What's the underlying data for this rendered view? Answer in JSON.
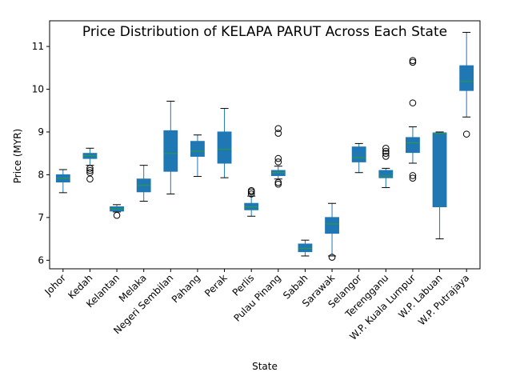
{
  "chart_data": {
    "type": "box",
    "title": "Price Distribution of KELAPA PARUT Across Each State",
    "xlabel": "State",
    "ylabel": "Price (MYR)",
    "ylim": [
      5.8,
      11.6
    ],
    "yticks": [
      "6",
      "7",
      "8",
      "9",
      "10",
      "11"
    ],
    "grid": false,
    "colors": {
      "box": "#1f77b4",
      "median": "#2ca02c",
      "whisker": "#1f77b4",
      "flier": "#000000"
    },
    "categories": [
      "Johor",
      "Kedah",
      "Kelantan",
      "Melaka",
      "Negeri Sembilan",
      "Pahang",
      "Perak",
      "Perlis",
      "Pulau Pinang",
      "Sabah",
      "Sarawak",
      "Selangor",
      "Terengganu",
      "W.P. Kuala Lumpur",
      "W.P. Labuan",
      "W.P. Putrajaya"
    ],
    "boxes": [
      {
        "whislo": 7.58,
        "q1": 7.83,
        "med": 7.92,
        "q3": 8.0,
        "whishi": 8.12,
        "fliers": []
      },
      {
        "whislo": 8.22,
        "q1": 8.38,
        "med": 8.45,
        "q3": 8.5,
        "whishi": 8.62,
        "fliers": [
          8.15,
          8.1,
          8.05,
          7.9
        ]
      },
      {
        "whislo": 7.13,
        "q1": 7.15,
        "med": 7.2,
        "q3": 7.25,
        "whishi": 7.3,
        "fliers": [
          7.05
        ]
      },
      {
        "whislo": 7.38,
        "q1": 7.6,
        "med": 7.75,
        "q3": 7.9,
        "whishi": 8.22,
        "fliers": []
      },
      {
        "whislo": 7.55,
        "q1": 8.08,
        "med": 8.5,
        "q3": 9.03,
        "whishi": 9.72,
        "fliers": []
      },
      {
        "whislo": 7.96,
        "q1": 8.43,
        "med": 8.55,
        "q3": 8.78,
        "whishi": 8.93,
        "fliers": []
      },
      {
        "whislo": 7.93,
        "q1": 8.27,
        "med": 8.6,
        "q3": 9.0,
        "whishi": 9.55,
        "fliers": []
      },
      {
        "whislo": 7.03,
        "q1": 7.18,
        "med": 7.25,
        "q3": 7.33,
        "whishi": 7.5,
        "fliers": [
          7.55,
          7.6,
          7.63
        ]
      },
      {
        "whislo": 7.9,
        "q1": 7.98,
        "med": 8.05,
        "q3": 8.1,
        "whishi": 8.2,
        "fliers": [
          7.78,
          7.82,
          8.3,
          8.38,
          8.97,
          9.08
        ]
      },
      {
        "whislo": 6.1,
        "q1": 6.2,
        "med": 6.28,
        "q3": 6.38,
        "whishi": 6.47,
        "fliers": []
      },
      {
        "whislo": 6.1,
        "q1": 6.63,
        "med": 6.85,
        "q3": 7.0,
        "whishi": 7.33,
        "fliers": [
          6.07
        ]
      },
      {
        "whislo": 8.05,
        "q1": 8.3,
        "med": 8.4,
        "q3": 8.65,
        "whishi": 8.73,
        "fliers": []
      },
      {
        "whislo": 7.7,
        "q1": 7.93,
        "med": 7.97,
        "q3": 8.1,
        "whishi": 8.15,
        "fliers": [
          8.43,
          8.5,
          8.55,
          8.62
        ]
      },
      {
        "whislo": 8.27,
        "q1": 8.52,
        "med": 8.75,
        "q3": 8.87,
        "whishi": 9.12,
        "fliers": [
          7.92,
          7.98,
          9.68,
          10.63,
          10.67
        ]
      },
      {
        "whislo": 6.5,
        "q1": 7.25,
        "med": 8.97,
        "q3": 8.98,
        "whishi": 9.0,
        "fliers": []
      },
      {
        "whislo": 9.35,
        "q1": 9.97,
        "med": 10.18,
        "q3": 10.55,
        "whishi": 11.33,
        "fliers": [
          8.95
        ]
      }
    ]
  }
}
